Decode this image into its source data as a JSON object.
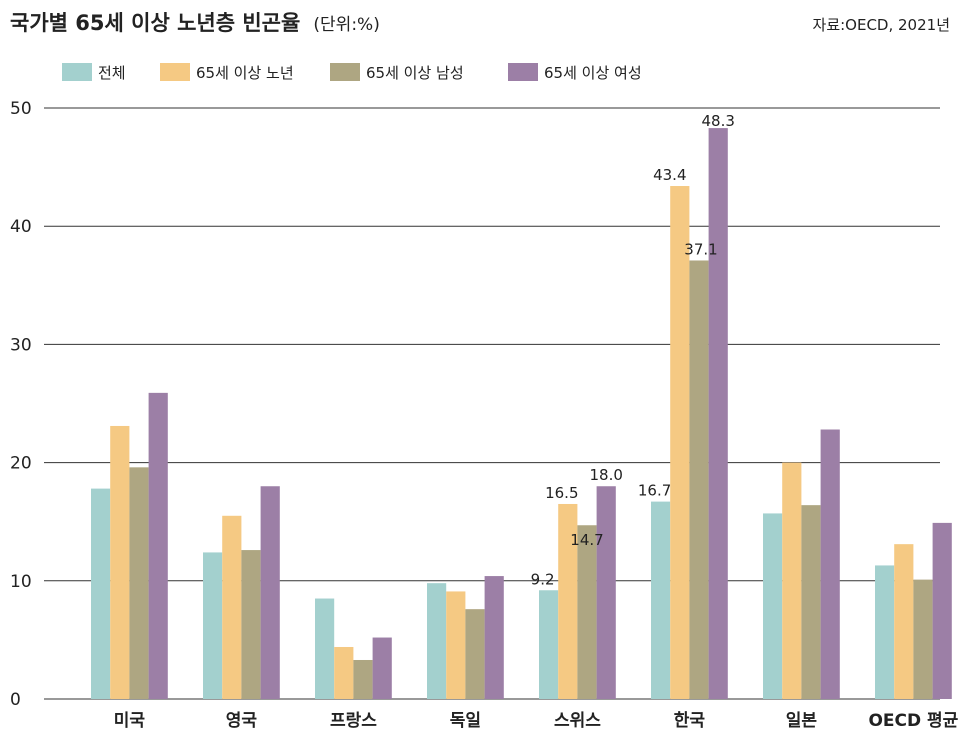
{
  "chart_data": {
    "type": "bar",
    "title": "국가별 65세 이상 노년층 빈곤율",
    "unit": "(단위:%)",
    "source": "자료:OECD, 2021년",
    "ylim": [
      0,
      50
    ],
    "yticks": [
      "0",
      "10",
      "20",
      "30",
      "40",
      "50"
    ],
    "grid": true,
    "legend_position": "top-left",
    "categories": [
      "미국",
      "영국",
      "프랑스",
      "독일",
      "스위스",
      "한국",
      "일본",
      "OECD 평균"
    ],
    "series": [
      {
        "name": "전체",
        "color": "#a3d0ce",
        "values": [
          17.8,
          12.4,
          8.5,
          9.8,
          9.2,
          16.7,
          15.7,
          11.3
        ]
      },
      {
        "name": "65세 이상 노년",
        "color": "#f5c983",
        "values": [
          23.1,
          15.5,
          4.4,
          9.1,
          16.5,
          43.4,
          20.0,
          13.1
        ]
      },
      {
        "name": "65세 이상 남성",
        "color": "#aea682",
        "values": [
          19.6,
          12.6,
          3.3,
          7.6,
          14.7,
          37.1,
          16.4,
          10.1
        ]
      },
      {
        "name": "65세 이상 여성",
        "color": "#9c7fa6",
        "values": [
          25.9,
          18.0,
          5.2,
          10.4,
          18.0,
          48.3,
          22.8,
          14.9
        ]
      }
    ],
    "data_labels": [
      {
        "category": "스위스",
        "series": "전체",
        "text": "9.2"
      },
      {
        "category": "스위스",
        "series": "65세 이상 노년",
        "text": "16.5"
      },
      {
        "category": "스위스",
        "series": "65세 이상 남성",
        "text": "14.7"
      },
      {
        "category": "스위스",
        "series": "65세 이상 여성",
        "text": "18.0"
      },
      {
        "category": "한국",
        "series": "전체",
        "text": "16.7"
      },
      {
        "category": "한국",
        "series": "65세 이상 노년",
        "text": "43.4"
      },
      {
        "category": "한국",
        "series": "65세 이상 남성",
        "text": "37.1"
      },
      {
        "category": "한국",
        "series": "65세 이상 여성",
        "text": "48.3"
      }
    ]
  }
}
